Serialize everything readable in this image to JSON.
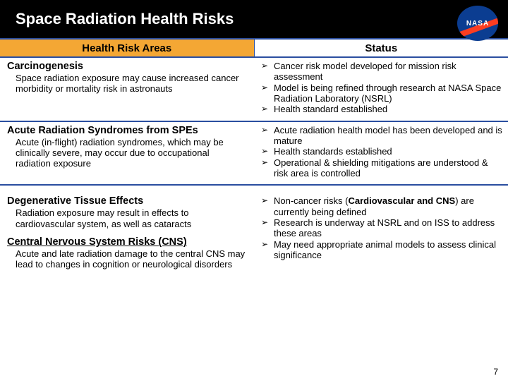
{
  "title": "Space Radiation Health Risks",
  "logo_text": "NASA",
  "headers": {
    "left": "Health Risk Areas",
    "right": "Status"
  },
  "colors": {
    "titlebar_bg": "#000000",
    "titlebar_fg": "#ffffff",
    "header_border": "#2a4ea0",
    "header_left_bg": "#f4a734",
    "header_right_bg": "#ffffff",
    "logo_bg": "#0b3d91",
    "logo_swoosh": "#fc3d21"
  },
  "rows": [
    {
      "risk_title": "Carcinogenesis",
      "risk_desc": "Space radiation exposure may cause increased cancer morbidity or mortality risk in astronauts",
      "status": [
        "Cancer risk model developed for mission risk assessment",
        "Model is being refined through research at NASA Space Radiation Laboratory (NSRL)",
        "Health standard established"
      ]
    },
    {
      "risk_title": "Acute Radiation Syndromes from SPEs",
      "risk_desc": "Acute (in-flight) radiation syndromes, which may be clinically severe, may occur due to occupational radiation exposure",
      "status": [
        "Acute radiation health model has been developed and is mature",
        "Health standards established",
        "Operational & shielding mitigations are understood & risk area is controlled"
      ]
    }
  ],
  "combined": {
    "risks": [
      {
        "title": "Degenerative Tissue Effects",
        "desc": "Radiation exposure may result in effects to cardiovascular system, as well as cataracts"
      },
      {
        "title": "Central Nervous System Risks (CNS)",
        "desc": "Acute and late radiation damage to the central CNS may lead to changes in cognition or neurological disorders"
      }
    ],
    "status_pre": "Non-cancer risks (",
    "status_bold": "Cardiovascular and CNS",
    "status_post": ") are currently being defined",
    "status_rest": [
      "Research is underway at NSRL and on ISS to address these areas",
      "May need appropriate animal models to assess clinical significance"
    ]
  },
  "page_number": "7"
}
